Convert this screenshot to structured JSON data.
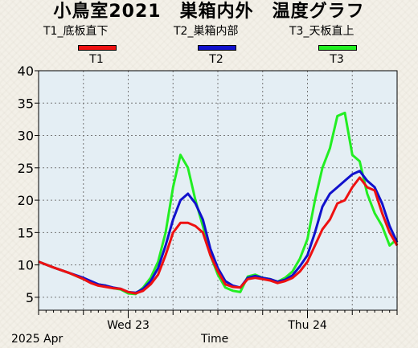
{
  "title": "小鳥室2021　巣箱内外　温度グラフ",
  "legend": [
    {
      "label": "T1_底板直下",
      "key": "T1",
      "color": "#ee1111"
    },
    {
      "label": "T2_巣箱内部",
      "key": "T2",
      "color": "#1111cc"
    },
    {
      "label": "T3_天板直上",
      "key": "T3",
      "color": "#22ee22"
    }
  ],
  "footer": {
    "date": "2025 Apr",
    "xlabel": "Time"
  },
  "chart_data": {
    "type": "line",
    "title": "小鳥室2021　巣箱内外　温度グラフ",
    "xlabel": "Time",
    "ylabel": "",
    "ylim": [
      3,
      40
    ],
    "yticks": [
      5,
      10,
      15,
      20,
      25,
      30,
      35,
      40
    ],
    "xlim": [
      0,
      48
    ],
    "x_unit": "hours from 2025-04-22 12:00",
    "xticks": [
      {
        "x": 12,
        "label": "Wed 23"
      },
      {
        "x": 36,
        "label": "Thu 24"
      }
    ],
    "grid": true,
    "background": "#e4eef4",
    "series": [
      {
        "name": "T1",
        "color": "#ee1111",
        "x": [
          0,
          2,
          4,
          6,
          7,
          8,
          9,
          10,
          11,
          12,
          13,
          14,
          15,
          16,
          17,
          18,
          19,
          20,
          21,
          22,
          23,
          24,
          25,
          26,
          27,
          28,
          29,
          30,
          31,
          32,
          33,
          34,
          35,
          36,
          37,
          38,
          39,
          40,
          41,
          42,
          43,
          44,
          45,
          46,
          47,
          48
        ],
        "y": [
          10.5,
          9.6,
          8.8,
          7.8,
          7.2,
          6.8,
          6.6,
          6.4,
          6.3,
          5.8,
          5.6,
          6.0,
          7.0,
          8.5,
          11.5,
          15.0,
          16.5,
          16.5,
          16.0,
          15.0,
          11.5,
          9.0,
          7.0,
          6.6,
          6.5,
          7.8,
          8.0,
          7.8,
          7.6,
          7.2,
          7.5,
          8.0,
          9.0,
          10.5,
          13.0,
          15.5,
          17.0,
          19.5,
          20.0,
          22.0,
          23.5,
          22.0,
          21.5,
          18.0,
          15.0,
          13.0
        ]
      },
      {
        "name": "T2",
        "color": "#1111cc",
        "x": [
          0,
          2,
          4,
          6,
          7,
          8,
          9,
          10,
          11,
          12,
          13,
          14,
          15,
          16,
          17,
          18,
          19,
          20,
          21,
          22,
          23,
          24,
          25,
          26,
          27,
          28,
          29,
          30,
          31,
          32,
          33,
          34,
          35,
          36,
          37,
          38,
          39,
          40,
          41,
          42,
          43,
          44,
          45,
          46,
          47,
          48
        ],
        "y": [
          10.5,
          9.6,
          8.8,
          8.0,
          7.5,
          7.0,
          6.8,
          6.5,
          6.3,
          5.8,
          5.7,
          6.3,
          7.5,
          9.5,
          13.0,
          17.0,
          20.0,
          21.0,
          19.5,
          17.0,
          12.5,
          9.5,
          7.5,
          6.8,
          6.5,
          8.0,
          8.3,
          8.0,
          7.8,
          7.4,
          7.7,
          8.4,
          9.8,
          11.5,
          15.0,
          19.0,
          21.0,
          22.0,
          23.0,
          24.0,
          24.5,
          23.0,
          22.0,
          19.5,
          16.0,
          13.5
        ]
      },
      {
        "name": "T3",
        "color": "#22ee22",
        "x": [
          0,
          2,
          4,
          6,
          7,
          8,
          9,
          10,
          11,
          12,
          13,
          14,
          15,
          16,
          17,
          18,
          19,
          20,
          21,
          22,
          23,
          24,
          25,
          26,
          27,
          28,
          29,
          30,
          31,
          32,
          33,
          34,
          35,
          36,
          37,
          38,
          39,
          40,
          41,
          42,
          43,
          44,
          45,
          46,
          47,
          48
        ],
        "y": [
          10.5,
          9.6,
          8.8,
          7.8,
          7.4,
          7.0,
          6.8,
          6.4,
          6.2,
          5.6,
          5.5,
          6.5,
          8.0,
          10.5,
          15.0,
          22.0,
          27.0,
          25.0,
          20.0,
          16.0,
          11.5,
          8.5,
          6.5,
          6.0,
          5.8,
          8.2,
          8.5,
          8.0,
          7.8,
          7.4,
          8.0,
          9.0,
          11.0,
          14.0,
          20.0,
          25.0,
          28.0,
          33.0,
          33.5,
          27.0,
          26.0,
          21.0,
          18.0,
          16.0,
          13.0,
          14.0
        ]
      }
    ]
  }
}
